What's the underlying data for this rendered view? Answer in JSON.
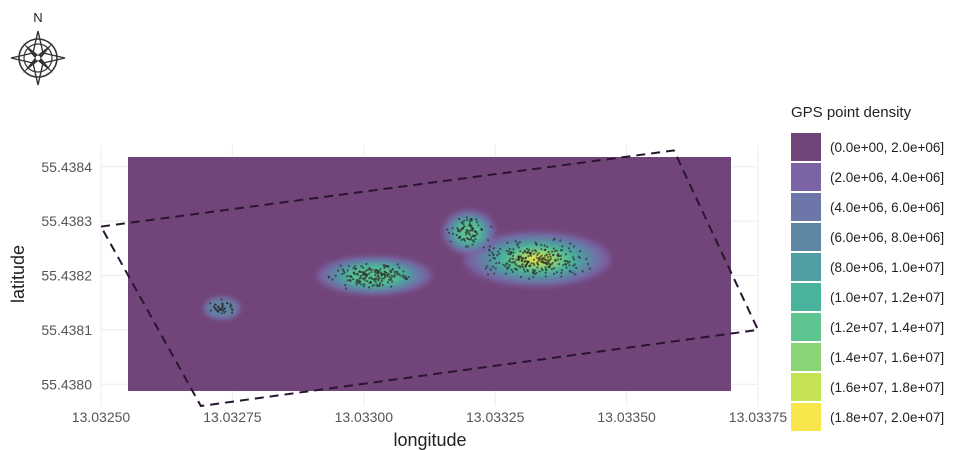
{
  "compass": {
    "north_label": "N",
    "icon": "compass-rose-icon"
  },
  "chart_data": {
    "type": "heatmap",
    "title": "",
    "xlabel": "longitude",
    "ylabel": "latitude",
    "xlim": [
      13.0325,
      13.03375
    ],
    "ylim": [
      55.43796,
      55.43844
    ],
    "x_ticks": [
      13.0325,
      13.03275,
      13.033,
      13.03325,
      13.0335,
      13.03375
    ],
    "x_tick_labels": [
      "13.03250",
      "13.03275",
      "13.03300",
      "13.03325",
      "13.03350",
      "13.03375"
    ],
    "y_ticks": [
      55.438,
      55.4381,
      55.4382,
      55.4383,
      55.4384
    ],
    "y_tick_labels": [
      "55.4380",
      "55.4381",
      "55.4382",
      "55.4383",
      "55.4384"
    ],
    "grid": true,
    "background_fill_color": "#71457a",
    "dashed_boundary": [
      [
        13.0325,
        55.43829
      ],
      [
        13.03359,
        55.43843
      ],
      [
        13.03375,
        55.4381
      ],
      [
        13.03269,
        55.43796
      ]
    ],
    "density_hotspots": [
      {
        "x": 13.03333,
        "y": 55.43823,
        "spread_x": 0.00014,
        "spread_y": 5e-05
      },
      {
        "x": 13.03302,
        "y": 55.4382,
        "spread_x": 0.00011,
        "spread_y": 3.5e-05
      },
      {
        "x": 13.03273,
        "y": 55.43814,
        "spread_x": 3.5e-05,
        "spread_y": 2e-05
      },
      {
        "x": 13.0332,
        "y": 55.43828,
        "spread_x": 5e-05,
        "spread_y": 4e-05
      }
    ],
    "legend": {
      "title": "GPS point density",
      "position": "right",
      "entries": [
        {
          "label": "(0.0e+00, 2.0e+06]",
          "color": "#71457a"
        },
        {
          "label": "(2.0e+06, 4.0e+06]",
          "color": "#7b63a4"
        },
        {
          "label": "(4.0e+06, 6.0e+06]",
          "color": "#6c76a8"
        },
        {
          "label": "(6.0e+06, 8.0e+06]",
          "color": "#5d87a4"
        },
        {
          "label": "(8.0e+06, 1.0e+07]",
          "color": "#4f9ea2"
        },
        {
          "label": "(1.0e+07, 1.2e+07]",
          "color": "#49b39d"
        },
        {
          "label": "(1.2e+07, 1.4e+07]",
          "color": "#5fc590"
        },
        {
          "label": "(1.4e+07, 1.6e+07]",
          "color": "#8bd475"
        },
        {
          "label": "(1.6e+07, 1.8e+07]",
          "color": "#c6e255"
        },
        {
          "label": "(1.8e+07, 2.0e+07]",
          "color": "#f8e64b"
        }
      ]
    }
  }
}
